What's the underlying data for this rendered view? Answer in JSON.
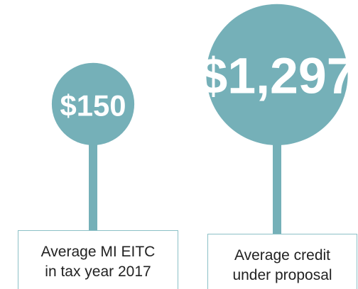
{
  "chart_data": {
    "type": "bubble",
    "categories": [
      "Average MI EITC in tax year 2017",
      "Average credit under proposal"
    ],
    "values": [
      150,
      1297
    ],
    "value_labels": [
      "$150",
      "$1,297"
    ],
    "color": "#75b0b8"
  }
}
